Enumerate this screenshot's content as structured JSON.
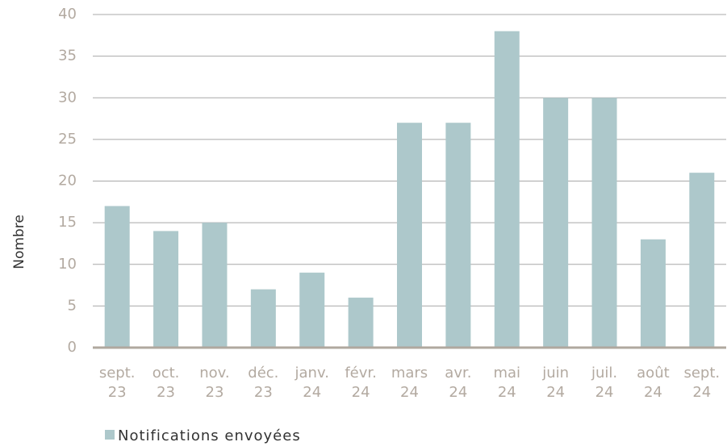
{
  "chart_data": {
    "type": "bar",
    "y_label": "Nombre",
    "categories": [
      "sept. 23",
      "oct. 23",
      "nov. 23",
      "déc. 23",
      "janv. 24",
      "févr. 24",
      "mars 24",
      "avr. 24",
      "mai 24",
      "juin 24",
      "juil. 24",
      "août 24",
      "sept. 24"
    ],
    "series": [
      {
        "name": "Notifications envoyées",
        "color": "#adc8cb",
        "values": [
          17,
          14,
          15,
          7,
          9,
          6,
          27,
          27,
          38,
          30,
          30,
          13,
          21
        ]
      }
    ],
    "ylim": [
      0,
      40
    ],
    "yticks": [
      0,
      5,
      10,
      15,
      20,
      25,
      30,
      35,
      40
    ],
    "grid": true
  }
}
